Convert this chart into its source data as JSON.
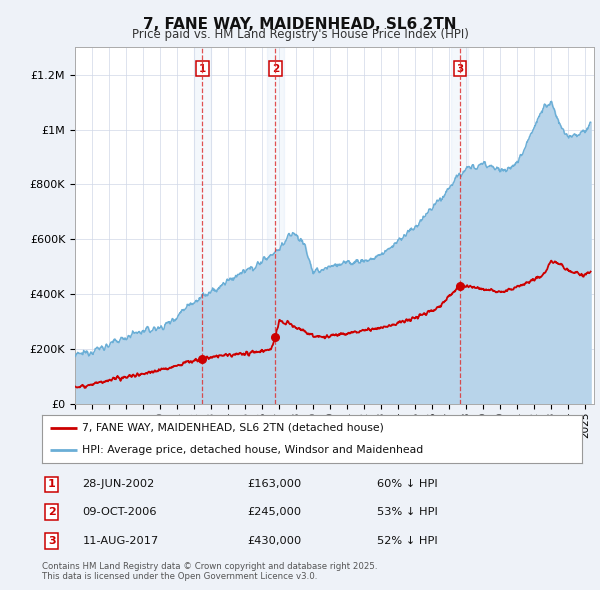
{
  "title": "7, FANE WAY, MAIDENHEAD, SL6 2TN",
  "subtitle": "Price paid vs. HM Land Registry's House Price Index (HPI)",
  "hpi_color": "#b8d4ea",
  "hpi_line_color": "#6aaed6",
  "price_color": "#cc0000",
  "background_color": "#eef2f8",
  "plot_bg": "#ffffff",
  "ylim": [
    0,
    1300000
  ],
  "yticks": [
    0,
    200000,
    400000,
    600000,
    800000,
    1000000,
    1200000
  ],
  "ytick_labels": [
    "£0",
    "£200K",
    "£400K",
    "£600K",
    "£800K",
    "£1M",
    "£1.2M"
  ],
  "xlim_start": 1995.0,
  "xlim_end": 2025.5,
  "transactions": [
    {
      "num": 1,
      "date_num": 2002.49,
      "price": 163000,
      "label": "28-JUN-2002",
      "price_str": "£163,000",
      "pct": "60% ↓ HPI"
    },
    {
      "num": 2,
      "date_num": 2006.77,
      "price": 245000,
      "label": "09-OCT-2006",
      "price_str": "£245,000",
      "pct": "53% ↓ HPI"
    },
    {
      "num": 3,
      "date_num": 2017.61,
      "price": 430000,
      "label": "11-AUG-2017",
      "price_str": "£430,000",
      "pct": "52% ↓ HPI"
    }
  ],
  "legend_label_red": "7, FANE WAY, MAIDENHEAD, SL6 2TN (detached house)",
  "legend_label_blue": "HPI: Average price, detached house, Windsor and Maidenhead",
  "footnote": "Contains HM Land Registry data © Crown copyright and database right 2025.\nThis data is licensed under the Open Government Licence v3.0."
}
